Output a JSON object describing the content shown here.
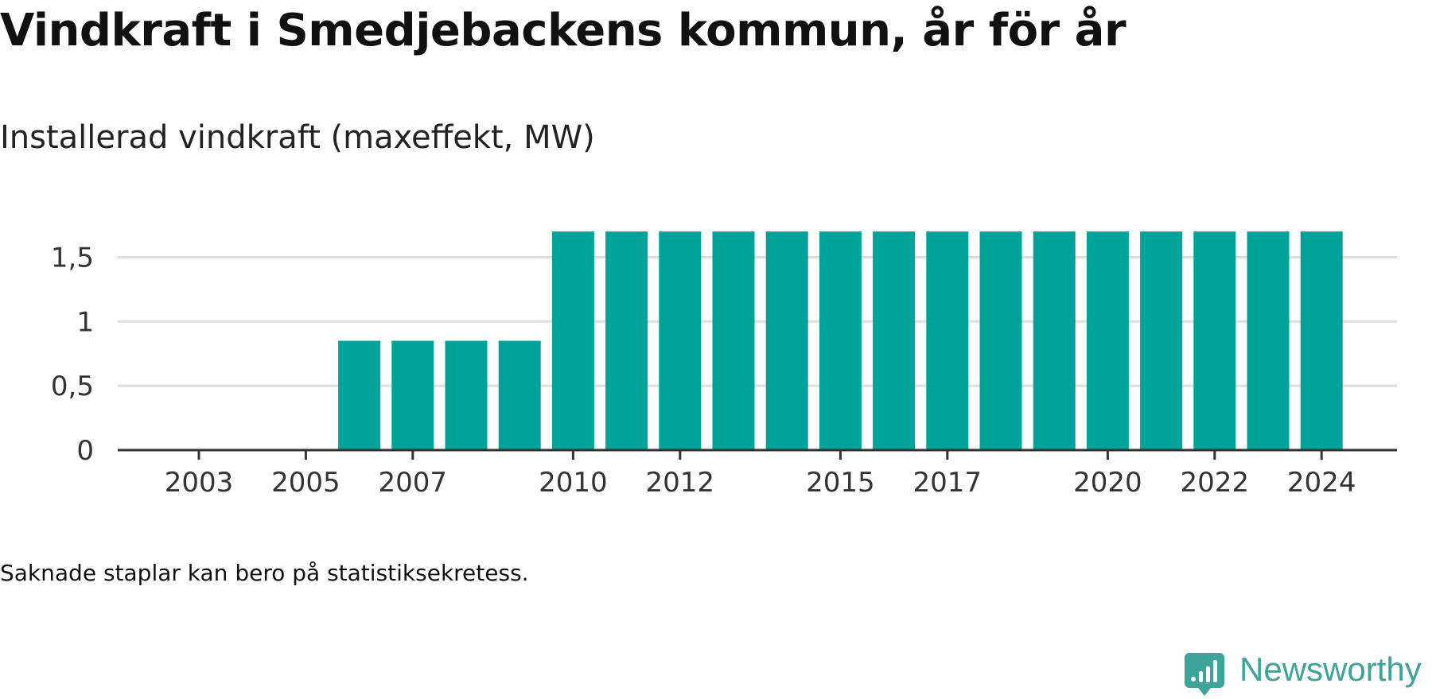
{
  "title": "Vindkraft i Smedjebackens kommun, år för år",
  "subtitle": "Installerad vindkraft (maxeffekt, MW)",
  "note": "Saknade staplar kan bero på statistiksekretess.",
  "brand": {
    "name": "Newsworthy",
    "icon": "newsworthy-logo-icon",
    "color": "#3fa39a"
  },
  "chart_data": {
    "type": "bar",
    "categories": [
      "2003",
      "2004",
      "2005",
      "2006",
      "2007",
      "2008",
      "2009",
      "2010",
      "2011",
      "2012",
      "2013",
      "2014",
      "2015",
      "2016",
      "2017",
      "2018",
      "2019",
      "2020",
      "2021",
      "2022",
      "2023",
      "2024"
    ],
    "values": [
      0,
      0,
      0,
      0.85,
      0.85,
      0.85,
      0.85,
      1.7,
      1.7,
      1.7,
      1.7,
      1.7,
      1.7,
      1.7,
      1.7,
      1.7,
      1.7,
      1.7,
      1.7,
      1.7,
      1.7,
      1.7
    ],
    "x_tick_labels": [
      "2003",
      "2005",
      "2007",
      "2010",
      "2012",
      "2015",
      "2017",
      "2020",
      "2022",
      "2024"
    ],
    "y_ticks": [
      0,
      0.5,
      1,
      1.5
    ],
    "y_tick_labels": [
      "0",
      "0,5",
      "1",
      "1,5"
    ],
    "ylim": [
      0,
      1.75
    ],
    "grid": true,
    "bar_color": "#00a39a",
    "xlabel": "",
    "ylabel": ""
  }
}
